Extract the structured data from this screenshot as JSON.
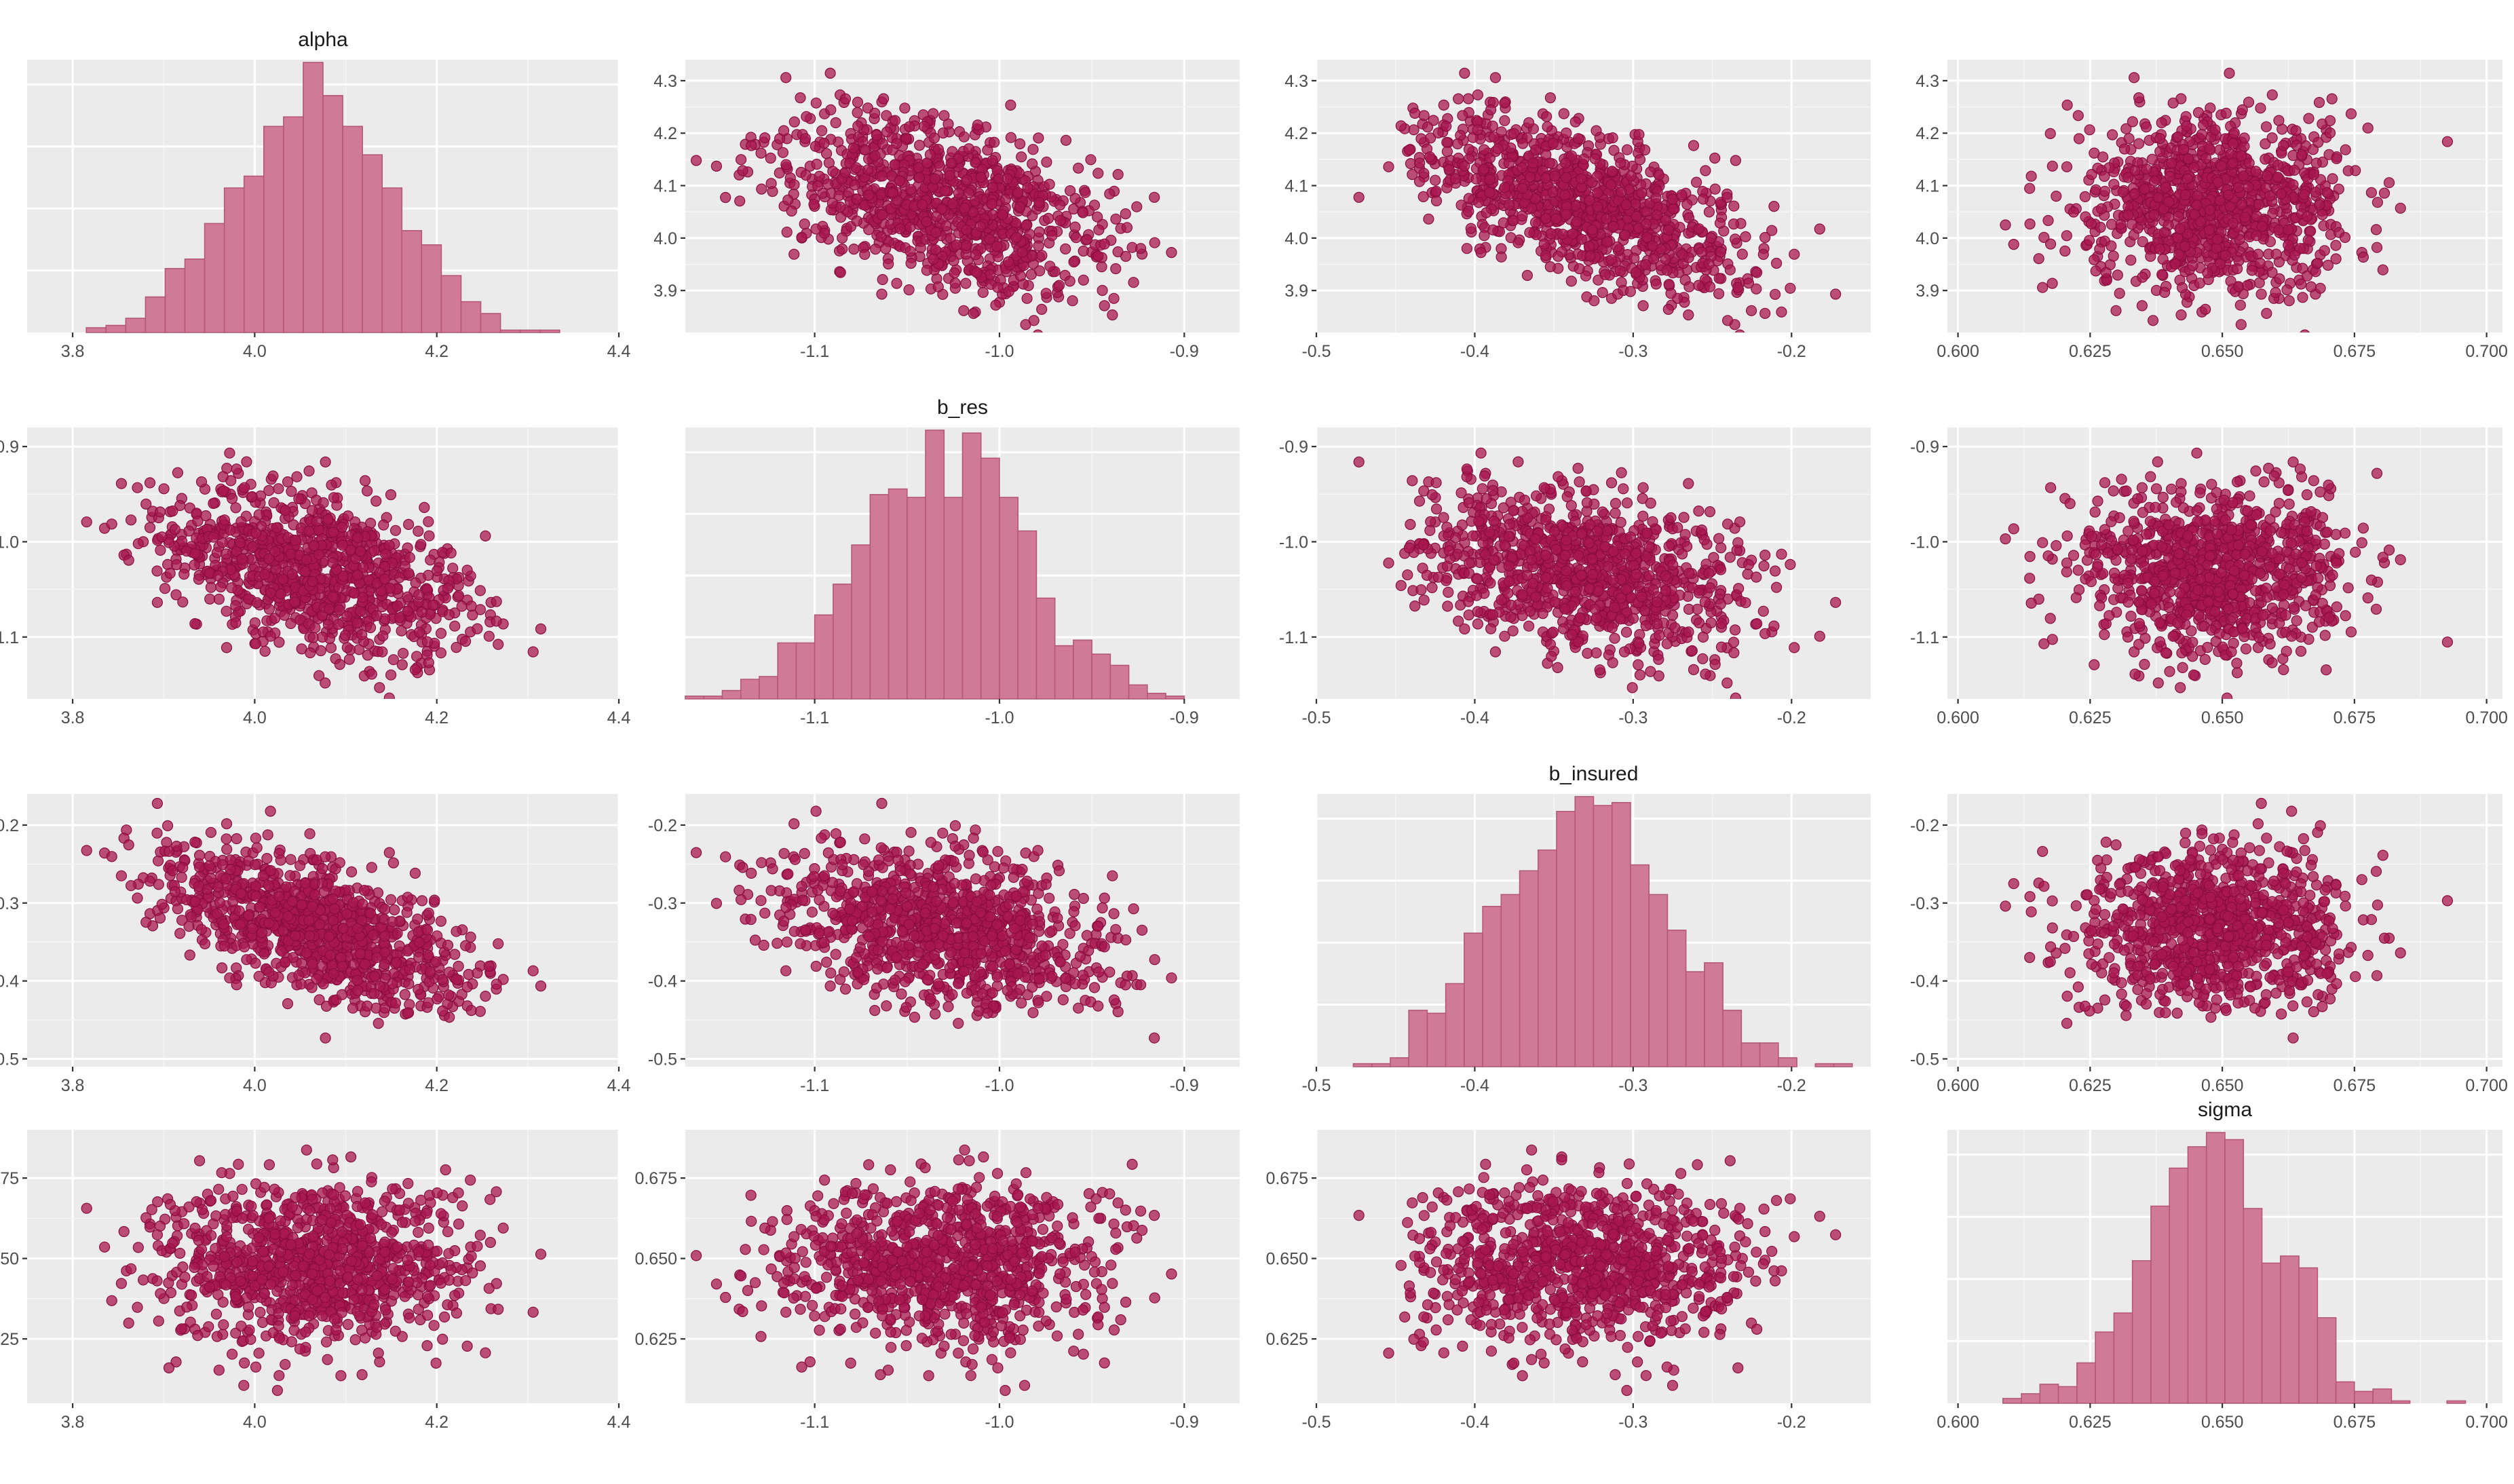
{
  "colors": {
    "point_fill": "#a8184f",
    "point_stroke": "#8a0d3e",
    "bar_fill": "#d17a98",
    "bar_stroke": "#b35877",
    "panel_bg": "#ebebeb",
    "grid": "#ffffff"
  },
  "parameters": [
    "alpha",
    "b_res",
    "b_insured",
    "sigma"
  ],
  "chart_data": {
    "type": "pairs",
    "layout": "4x4 matrix: histograms on diagonal, scatter plots off diagonal",
    "variables": [
      {
        "name": "alpha",
        "mean": 4.07,
        "sd": 0.085,
        "range": [
          3.75,
          4.4
        ],
        "ticks": [
          "3.8",
          "4.0",
          "4.2",
          "4.4"
        ],
        "tick_values": [
          3.8,
          4.0,
          4.2,
          4.4
        ]
      },
      {
        "name": "b_res",
        "mean": -1.03,
        "sd": 0.045,
        "range": [
          -1.17,
          -0.87
        ],
        "ticks": [
          "-1.1",
          "-1.0",
          "-0.9"
        ],
        "tick_values": [
          -1.1,
          -1.0,
          -0.9
        ]
      },
      {
        "name": "b_insured",
        "mean": -0.335,
        "sd": 0.05,
        "range": [
          -0.5,
          -0.15
        ],
        "ticks": [
          "-0.5",
          "-0.4",
          "-0.3",
          "-0.2"
        ],
        "tick_values": [
          -0.5,
          -0.4,
          -0.3,
          -0.2
        ]
      },
      {
        "name": "sigma",
        "mean": 0.648,
        "sd": 0.013,
        "range": [
          0.598,
          0.703
        ],
        "ticks": [
          "0.600",
          "0.625",
          "0.650",
          "0.675",
          "0.700"
        ],
        "tick_values": [
          0.6,
          0.625,
          0.65,
          0.675,
          0.7
        ]
      }
    ],
    "correlations": {
      "alpha|b_res": -0.45,
      "alpha|b_insured": -0.6,
      "alpha|sigma": 0.0,
      "b_res|b_insured": -0.3,
      "b_res|sigma": 0.0,
      "b_insured|sigma": 0.0
    },
    "n_draws": 1000,
    "y_ticks": {
      "alpha": {
        "labels": [
          "3.9",
          "4.0",
          "4.1",
          "4.2",
          "4.3"
        ],
        "values": [
          3.9,
          4.0,
          4.1,
          4.2,
          4.3
        ],
        "range": [
          3.82,
          4.34
        ]
      },
      "b_res": {
        "labels": [
          "-1.1",
          "-1.0",
          "-0.9"
        ],
        "values": [
          -1.1,
          -1.0,
          -0.9
        ],
        "range": [
          -1.165,
          -0.88
        ]
      },
      "b_insured": {
        "labels": [
          "-0.5",
          "-0.4",
          "-0.3",
          "-0.2"
        ],
        "values": [
          -0.5,
          -0.4,
          -0.3,
          -0.2
        ],
        "range": [
          -0.51,
          -0.16
        ]
      },
      "sigma": {
        "labels": [
          "0.625",
          "0.650",
          "0.675"
        ],
        "values": [
          0.625,
          0.65,
          0.675
        ],
        "range": [
          0.605,
          0.69
        ]
      }
    },
    "histograms": {
      "alpha": {
        "bins": 30,
        "range": [
          3.75,
          4.4
        ]
      },
      "b_res": {
        "bins": 30,
        "range": [
          -1.17,
          -0.87
        ]
      },
      "b_insured": {
        "bins": 30,
        "range": [
          -0.5,
          -0.15
        ]
      },
      "sigma": {
        "bins": 30,
        "range": [
          0.598,
          0.703
        ]
      }
    },
    "grid": true
  }
}
